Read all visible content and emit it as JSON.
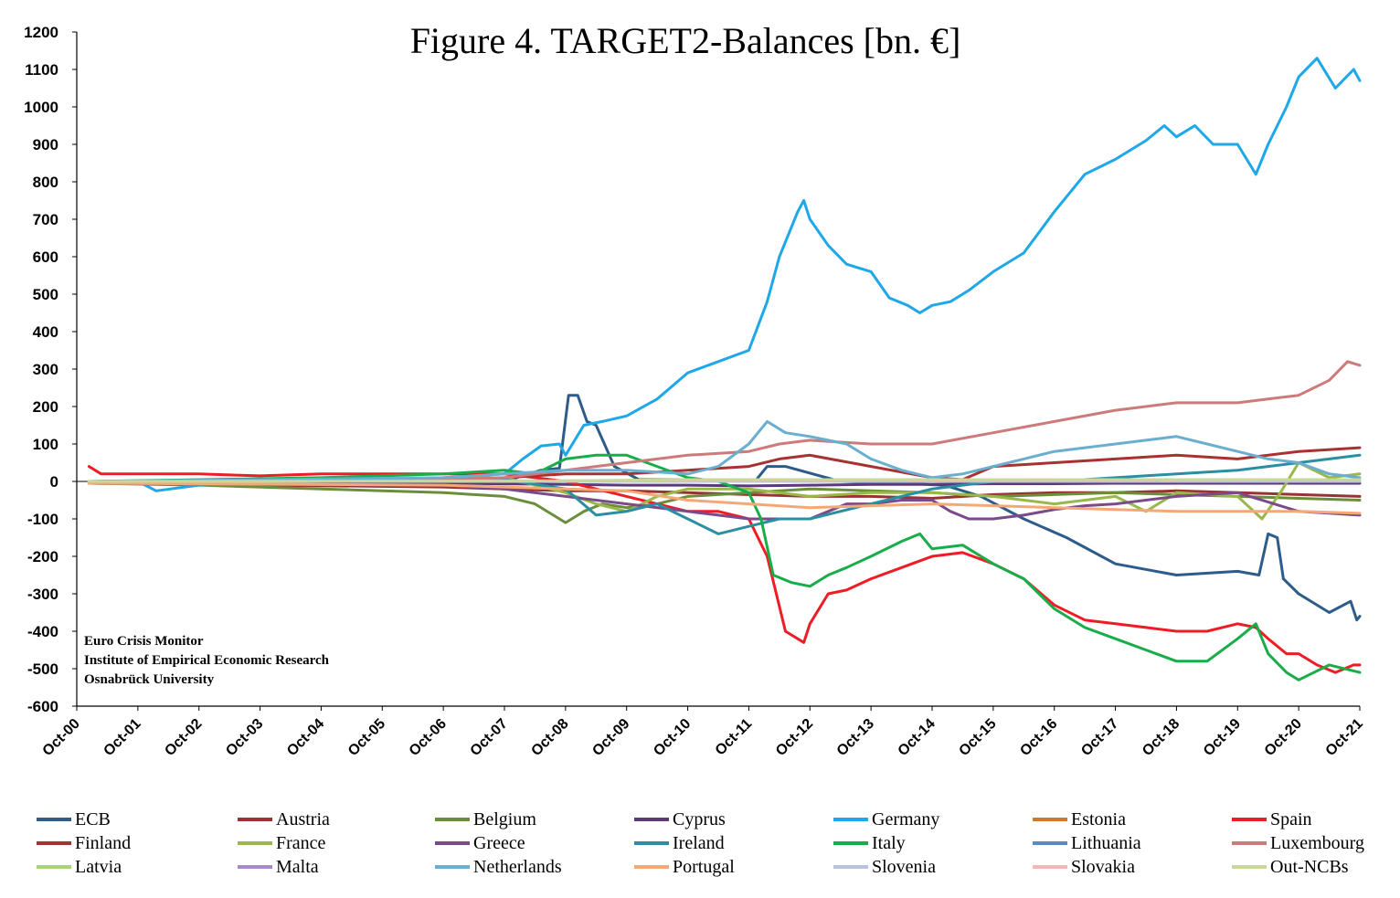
{
  "chart_data": {
    "type": "line",
    "title": "Figure 4. TARGET2-Balances [bn. €]",
    "ylim": [
      -600,
      1200
    ],
    "yticks": [
      -600,
      -500,
      -400,
      -300,
      -200,
      -100,
      0,
      100,
      200,
      300,
      400,
      500,
      600,
      700,
      800,
      900,
      1000,
      1100,
      1200
    ],
    "xlim": [
      "Oct-00",
      "Oct-21"
    ],
    "xticks": [
      "Oct-00",
      "Oct-01",
      "Oct-02",
      "Oct-03",
      "Oct-04",
      "Oct-05",
      "Oct-06",
      "Oct-07",
      "Oct-08",
      "Oct-09",
      "Oct-10",
      "Oct-11",
      "Oct-12",
      "Oct-13",
      "Oct-14",
      "Oct-15",
      "Oct-16",
      "Oct-17",
      "Oct-18",
      "Oct-19",
      "Oct-20",
      "Oct-21"
    ],
    "grid": false,
    "legend_position": "bottom",
    "annotation": [
      "Euro Crisis Monitor",
      "Institute of Empirical Economic Research",
      "Osnabrück University"
    ],
    "series": [
      {
        "name": "ECB",
        "color": "#2e5c8a",
        "x": [
          0.2,
          7.0,
          7.6,
          7.9,
          8.05,
          8.2,
          8.35,
          8.5,
          8.8,
          9.2,
          10.5,
          11.1,
          11.3,
          11.6,
          12.5,
          13.5,
          14.2,
          14.8,
          15.5,
          16.2,
          17.0,
          18.0,
          19.0,
          19.35,
          19.5,
          19.65,
          19.75,
          20.0,
          20.5,
          20.85,
          20.95,
          21.0
        ],
        "y": [
          -5,
          0,
          30,
          35,
          230,
          230,
          160,
          150,
          40,
          5,
          5,
          0,
          40,
          40,
          0,
          -5,
          -10,
          -40,
          -100,
          -150,
          -220,
          -250,
          -240,
          -250,
          -140,
          -150,
          -260,
          -300,
          -350,
          -320,
          -370,
          -360
        ]
      },
      {
        "name": "Austria",
        "color": "#993333",
        "x": [
          0.2,
          3.0,
          6.0,
          7.0,
          8.0,
          9.0,
          10.0,
          11.0,
          12.0,
          13.0,
          14.0,
          15.0,
          16.0,
          17.0,
          18.0,
          19.0,
          20.0,
          21.0
        ],
        "y": [
          -5,
          -10,
          -15,
          -20,
          -25,
          -25,
          -30,
          -35,
          -40,
          -40,
          -45,
          -35,
          -30,
          -30,
          -25,
          -30,
          -35,
          -40
        ]
      },
      {
        "name": "Belgium",
        "color": "#6b8e3a",
        "x": [
          0.2,
          2.0,
          4.0,
          6.0,
          7.0,
          7.5,
          8.0,
          8.3,
          8.6,
          9.0,
          9.5,
          10.0,
          11.0,
          12.0,
          13.0,
          14.0,
          15.0,
          16.0,
          17.0,
          18.0,
          19.0,
          20.0,
          21.0
        ],
        "y": [
          -5,
          -10,
          -20,
          -30,
          -40,
          -60,
          -110,
          -80,
          -60,
          -70,
          -60,
          -40,
          -30,
          -20,
          -25,
          -30,
          -40,
          -35,
          -30,
          -35,
          -40,
          -45,
          -50
        ]
      },
      {
        "name": "Cyprus",
        "color": "#5c3a7a",
        "x": [
          0.2,
          6.0,
          8.0,
          9.0,
          10.0,
          11.0,
          12.0,
          13.0,
          14.0,
          15.0,
          16.0,
          17.0,
          18.0,
          19.0,
          20.0,
          21.0
        ],
        "y": [
          -2,
          -5,
          -8,
          -10,
          -10,
          -12,
          -10,
          -8,
          -8,
          -6,
          -6,
          -5,
          -5,
          -5,
          -5,
          -5
        ]
      },
      {
        "name": "Germany",
        "color": "#1ea8e8",
        "x": [
          0.2,
          1.0,
          1.3,
          2.0,
          3.0,
          4.0,
          5.0,
          6.0,
          7.0,
          7.3,
          7.6,
          7.9,
          8.0,
          8.3,
          8.6,
          9.0,
          9.5,
          10.0,
          10.5,
          11.0,
          11.3,
          11.5,
          11.8,
          11.9,
          12.0,
          12.3,
          12.6,
          13.0,
          13.3,
          13.6,
          13.8,
          14.0,
          14.3,
          14.6,
          15.0,
          15.5,
          16.0,
          16.5,
          17.0,
          17.5,
          17.8,
          18.0,
          18.3,
          18.6,
          19.0,
          19.3,
          19.5,
          19.8,
          20.0,
          20.3,
          20.6,
          20.9,
          21.0
        ],
        "y": [
          0,
          0,
          -25,
          -10,
          -5,
          0,
          5,
          10,
          20,
          60,
          95,
          100,
          70,
          150,
          160,
          175,
          220,
          290,
          320,
          350,
          480,
          600,
          720,
          750,
          700,
          630,
          580,
          560,
          490,
          470,
          450,
          470,
          480,
          510,
          560,
          610,
          720,
          820,
          860,
          910,
          950,
          920,
          950,
          900,
          900,
          820,
          900,
          1000,
          1080,
          1130,
          1050,
          1100,
          1070
        ]
      },
      {
        "name": "Estonia",
        "color": "#cc7a33",
        "x": [
          0.2,
          21.0
        ],
        "y": [
          0,
          0
        ]
      },
      {
        "name": "Spain",
        "color": "#ee1c25",
        "x": [
          0.2,
          0.4,
          1.0,
          2.0,
          3.0,
          4.0,
          5.0,
          6.0,
          7.0,
          8.0,
          8.5,
          9.0,
          9.5,
          10.0,
          10.5,
          11.0,
          11.3,
          11.6,
          11.9,
          12.0,
          12.3,
          12.6,
          13.0,
          13.5,
          14.0,
          14.5,
          15.0,
          15.5,
          16.0,
          16.5,
          17.0,
          17.5,
          18.0,
          18.5,
          19.0,
          19.3,
          19.5,
          19.8,
          20.0,
          20.3,
          20.6,
          20.9,
          21.0
        ],
        "y": [
          40,
          20,
          20,
          20,
          15,
          20,
          20,
          20,
          20,
          0,
          -20,
          -40,
          -60,
          -80,
          -80,
          -100,
          -200,
          -400,
          -430,
          -380,
          -300,
          -290,
          -260,
          -230,
          -200,
          -190,
          -220,
          -260,
          -330,
          -370,
          -380,
          -390,
          -400,
          -400,
          -380,
          -390,
          -420,
          -460,
          -460,
          -490,
          -510,
          -490,
          -490
        ]
      },
      {
        "name": "Finland",
        "color": "#a83232",
        "x": [
          0.2,
          4.0,
          7.0,
          8.0,
          9.0,
          10.0,
          11.0,
          11.5,
          12.0,
          13.0,
          14.0,
          14.5,
          15.0,
          16.0,
          17.0,
          18.0,
          19.0,
          20.0,
          21.0
        ],
        "y": [
          0,
          5,
          10,
          20,
          20,
          30,
          40,
          60,
          70,
          40,
          10,
          5,
          40,
          50,
          60,
          70,
          60,
          80,
          90
        ]
      },
      {
        "name": "France",
        "color": "#9ab84a",
        "x": [
          0.2,
          4.0,
          7.0,
          8.0,
          8.5,
          9.0,
          9.5,
          10.0,
          11.0,
          12.0,
          13.0,
          14.0,
          15.0,
          16.0,
          17.0,
          17.5,
          18.0,
          19.0,
          19.4,
          19.7,
          20.0,
          20.5,
          21.0
        ],
        "y": [
          0,
          5,
          10,
          -30,
          -60,
          -80,
          -40,
          -20,
          -20,
          -40,
          -30,
          -30,
          -40,
          -60,
          -40,
          -80,
          -30,
          -40,
          -100,
          -30,
          50,
          10,
          20
        ]
      },
      {
        "name": "Greece",
        "color": "#7a4a8a",
        "x": [
          0.2,
          6.0,
          7.0,
          8.0,
          9.0,
          10.0,
          10.5,
          11.0,
          11.5,
          12.0,
          12.3,
          12.6,
          13.0,
          13.5,
          14.0,
          14.3,
          14.6,
          15.0,
          15.5,
          16.0,
          16.5,
          17.0,
          18.0,
          19.0,
          20.0,
          21.0
        ],
        "y": [
          -5,
          -10,
          -20,
          -40,
          -60,
          -80,
          -90,
          -100,
          -100,
          -100,
          -80,
          -60,
          -60,
          -50,
          -50,
          -80,
          -100,
          -100,
          -90,
          -75,
          -65,
          -60,
          -40,
          -30,
          -80,
          -90
        ]
      },
      {
        "name": "Ireland",
        "color": "#2a8fa3",
        "x": [
          0.2,
          6.0,
          7.0,
          8.0,
          8.5,
          9.0,
          9.5,
          10.0,
          10.5,
          11.0,
          11.5,
          12.0,
          13.0,
          14.0,
          15.0,
          16.0,
          17.0,
          18.0,
          19.0,
          20.0,
          21.0
        ],
        "y": [
          0,
          5,
          5,
          -20,
          -90,
          -80,
          -60,
          -100,
          -140,
          -120,
          -100,
          -100,
          -60,
          -20,
          0,
          0,
          10,
          20,
          30,
          50,
          70
        ]
      },
      {
        "name": "Italy",
        "color": "#19ad4a",
        "x": [
          0.2,
          4.0,
          6.0,
          7.0,
          7.5,
          8.0,
          8.5,
          9.0,
          9.5,
          10.0,
          10.5,
          11.0,
          11.2,
          11.4,
          11.7,
          12.0,
          12.3,
          12.6,
          13.0,
          13.5,
          13.8,
          14.0,
          14.5,
          15.0,
          15.5,
          16.0,
          16.5,
          17.0,
          17.5,
          18.0,
          18.5,
          19.0,
          19.3,
          19.5,
          19.8,
          20.0,
          20.5,
          21.0
        ],
        "y": [
          0,
          10,
          20,
          30,
          20,
          60,
          70,
          70,
          40,
          10,
          0,
          -30,
          -100,
          -250,
          -270,
          -280,
          -250,
          -230,
          -200,
          -160,
          -140,
          -180,
          -170,
          -220,
          -260,
          -340,
          -390,
          -420,
          -450,
          -480,
          -480,
          -420,
          -380,
          -460,
          -510,
          -530,
          -490,
          -510
        ]
      },
      {
        "name": "Lithuania",
        "color": "#5a8ac2",
        "x": [
          0.2,
          21.0
        ],
        "y": [
          0,
          2
        ]
      },
      {
        "name": "Luxembourg",
        "color": "#cc7a7a",
        "x": [
          0.2,
          4.0,
          6.0,
          7.0,
          8.0,
          9.0,
          10.0,
          11.0,
          11.5,
          12.0,
          13.0,
          14.0,
          15.0,
          16.0,
          17.0,
          18.0,
          19.0,
          19.5,
          20.0,
          20.5,
          20.8,
          21.0
        ],
        "y": [
          -5,
          0,
          5,
          10,
          30,
          50,
          70,
          80,
          100,
          110,
          100,
          100,
          130,
          160,
          190,
          210,
          210,
          220,
          230,
          270,
          320,
          310
        ]
      },
      {
        "name": "Latvia",
        "color": "#a6d37a",
        "x": [
          0.2,
          21.0
        ],
        "y": [
          0,
          0
        ]
      },
      {
        "name": "Malta",
        "color": "#a98ac9",
        "x": [
          0.2,
          21.0
        ],
        "y": [
          0,
          0
        ]
      },
      {
        "name": "Netherlands",
        "color": "#6aaed0",
        "x": [
          0.2,
          6.0,
          7.0,
          8.0,
          9.0,
          10.0,
          10.5,
          11.0,
          11.3,
          11.6,
          12.0,
          12.3,
          12.6,
          13.0,
          13.5,
          14.0,
          14.5,
          15.0,
          15.5,
          16.0,
          16.5,
          17.0,
          17.5,
          18.0,
          18.5,
          19.0,
          19.5,
          20.0,
          20.5,
          21.0
        ],
        "y": [
          0,
          10,
          20,
          30,
          30,
          20,
          40,
          100,
          160,
          130,
          120,
          110,
          100,
          60,
          30,
          10,
          20,
          40,
          60,
          80,
          90,
          100,
          110,
          120,
          100,
          80,
          60,
          50,
          20,
          10
        ]
      },
      {
        "name": "Portugal",
        "color": "#f5a877",
        "x": [
          0.2,
          6.0,
          7.0,
          8.0,
          9.0,
          10.0,
          11.0,
          12.0,
          13.0,
          14.0,
          15.0,
          16.0,
          17.0,
          18.0,
          19.0,
          20.0,
          21.0
        ],
        "y": [
          -5,
          -10,
          -15,
          -20,
          -25,
          -50,
          -60,
          -70,
          -65,
          -60,
          -65,
          -70,
          -75,
          -80,
          -80,
          -80,
          -85
        ]
      },
      {
        "name": "Slovenia",
        "color": "#b8c4df",
        "x": [
          0.2,
          21.0
        ],
        "y": [
          0,
          0
        ]
      },
      {
        "name": "Slovakia",
        "color": "#f2b8b8",
        "x": [
          0.2,
          21.0
        ],
        "y": [
          0,
          5
        ]
      },
      {
        "name": "Out-NCBs",
        "color": "#c7d89a",
        "x": [
          0.2,
          7.0,
          10.0,
          14.0,
          18.0,
          21.0
        ],
        "y": [
          0,
          0,
          5,
          5,
          5,
          5
        ]
      }
    ]
  }
}
